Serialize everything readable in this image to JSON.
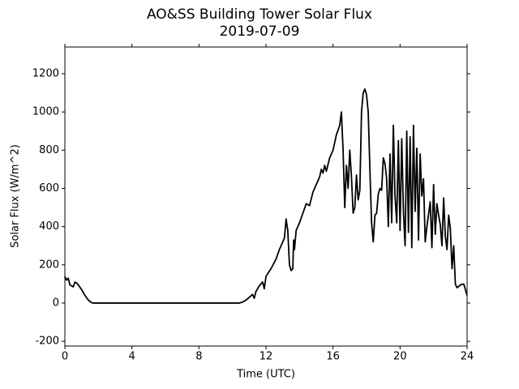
{
  "chart_data": {
    "type": "line",
    "title": "AO&SS Building Tower Solar Flux",
    "subtitle": "2019-07-09",
    "x_label": "Time (UTC)",
    "y_label": "Solar Flux (W/m^2)",
    "xlim": [
      0,
      24
    ],
    "xticks": [
      0,
      4,
      8,
      12,
      16,
      20,
      24
    ],
    "ylim": [
      -225,
      1340
    ],
    "yticks": [
      -200,
      0,
      200,
      400,
      600,
      800,
      1000,
      1200
    ],
    "grid": false,
    "series": [
      {
        "color": "#000000",
        "x": [
          0,
          0.1,
          0.2,
          0.3,
          0.4,
          0.5,
          0.6,
          0.7,
          0.8,
          1.0,
          1.2,
          1.4,
          1.6,
          1.7,
          10.4,
          10.6,
          10.8,
          11.0,
          11.2,
          11.3,
          11.4,
          11.6,
          11.8,
          11.9,
          12.0,
          12.3,
          12.6,
          12.8,
          13.0,
          13.1,
          13.2,
          13.3,
          13.4,
          13.5,
          13.6,
          13.65,
          13.7,
          13.8,
          14.0,
          14.2,
          14.4,
          14.6,
          14.8,
          15.0,
          15.2,
          15.3,
          15.4,
          15.5,
          15.6,
          15.8,
          16.0,
          16.2,
          16.4,
          16.5,
          16.6,
          16.7,
          16.8,
          16.9,
          17.0,
          17.1,
          17.2,
          17.3,
          17.4,
          17.5,
          17.6,
          17.7,
          17.8,
          17.9,
          18.0,
          18.1,
          18.2,
          18.3,
          18.4,
          18.5,
          18.6,
          18.7,
          18.8,
          18.9,
          19.0,
          19.1,
          19.2,
          19.3,
          19.4,
          19.5,
          19.6,
          19.7,
          19.8,
          19.9,
          20.0,
          20.1,
          20.2,
          20.3,
          20.4,
          20.5,
          20.6,
          20.7,
          20.8,
          20.9,
          21.0,
          21.1,
          21.2,
          21.3,
          21.4,
          21.5,
          21.6,
          21.8,
          21.9,
          22.0,
          22.1,
          22.2,
          22.3,
          22.4,
          22.5,
          22.6,
          22.7,
          22.8,
          22.9,
          23.0,
          23.1,
          23.2,
          23.3,
          23.4,
          23.6,
          23.8,
          24.0
        ],
        "values": [
          140,
          120,
          130,
          95,
          90,
          85,
          110,
          105,
          95,
          70,
          40,
          15,
          2,
          0,
          0,
          5,
          15,
          30,
          45,
          25,
          60,
          90,
          110,
          75,
          140,
          180,
          230,
          280,
          320,
          340,
          440,
          380,
          200,
          170,
          180,
          330,
          280,
          380,
          420,
          470,
          520,
          510,
          580,
          620,
          660,
          700,
          680,
          720,
          690,
          760,
          800,
          880,
          930,
          1000,
          800,
          500,
          720,
          600,
          800,
          660,
          470,
          500,
          670,
          540,
          590,
          1000,
          1100,
          1120,
          1090,
          1000,
          700,
          420,
          320,
          460,
          470,
          570,
          600,
          590,
          760,
          730,
          650,
          400,
          780,
          420,
          930,
          560,
          420,
          850,
          380,
          860,
          480,
          300,
          900,
          370,
          870,
          290,
          930,
          480,
          810,
          330,
          780,
          560,
          650,
          320,
          400,
          530,
          290,
          620,
          360,
          520,
          460,
          410,
          300,
          550,
          350,
          280,
          460,
          390,
          180,
          300,
          100,
          80,
          95,
          100,
          40
        ]
      }
    ]
  }
}
